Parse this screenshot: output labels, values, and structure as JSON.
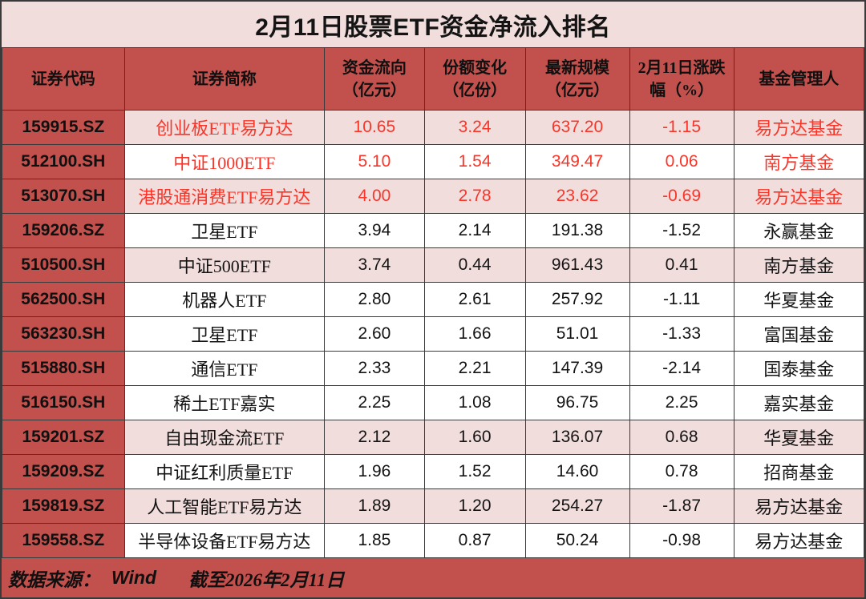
{
  "title": "2月11日股票ETF资金净流入排名",
  "colors": {
    "outer_border": "#3a3a3a",
    "title_bar_bg": "#F1DDDC",
    "header_red": "#C2514D",
    "highlight_row_pink": "#F1DDDC",
    "red_text": "#F93529",
    "black_text": "#141414"
  },
  "chart_data": {
    "type": "table",
    "title": "2月11日股票ETF资金净流入排名",
    "columns": [
      "证券代码",
      "证券简称",
      "资金流向（亿元）",
      "份额变化（亿份）",
      "最新规模（亿元）",
      "2月11日涨跌幅（%）",
      "基金管理人"
    ],
    "columns_display": [
      "证券代码",
      "证券简称",
      "资金流向\n（亿元）",
      "份额变化\n（亿份）",
      "最新规模\n（亿元）",
      "2月11日涨跌\n幅（%）",
      "基金管理人"
    ],
    "rows": [
      {
        "code": "159915.SZ",
        "name": "创业板ETF易方达",
        "flow": "10.65",
        "share_change": "3.24",
        "scale": "637.20",
        "change_pct": "-1.15",
        "manager": "易方达基金",
        "pink": true,
        "red": true
      },
      {
        "code": "512100.SH",
        "name": "中证1000ETF",
        "flow": "5.10",
        "share_change": "1.54",
        "scale": "349.47",
        "change_pct": "0.06",
        "manager": "南方基金",
        "pink": false,
        "red": true
      },
      {
        "code": "513070.SH",
        "name": "港股通消费ETF易方达",
        "flow": "4.00",
        "share_change": "2.78",
        "scale": "23.62",
        "change_pct": "-0.69",
        "manager": "易方达基金",
        "pink": true,
        "red": true
      },
      {
        "code": "159206.SZ",
        "name": "卫星ETF",
        "flow": "3.94",
        "share_change": "2.14",
        "scale": "191.38",
        "change_pct": "-1.52",
        "manager": "永赢基金",
        "pink": false,
        "red": false
      },
      {
        "code": "510500.SH",
        "name": "中证500ETF",
        "flow": "3.74",
        "share_change": "0.44",
        "scale": "961.43",
        "change_pct": "0.41",
        "manager": "南方基金",
        "pink": true,
        "red": false
      },
      {
        "code": "562500.SH",
        "name": "机器人ETF",
        "flow": "2.80",
        "share_change": "2.61",
        "scale": "257.92",
        "change_pct": "-1.11",
        "manager": "华夏基金",
        "pink": false,
        "red": false
      },
      {
        "code": "563230.SH",
        "name": "卫星ETF",
        "flow": "2.60",
        "share_change": "1.66",
        "scale": "51.01",
        "change_pct": "-1.33",
        "manager": "富国基金",
        "pink": false,
        "red": false
      },
      {
        "code": "515880.SH",
        "name": "通信ETF",
        "flow": "2.33",
        "share_change": "2.21",
        "scale": "147.39",
        "change_pct": "-2.14",
        "manager": "国泰基金",
        "pink": false,
        "red": false
      },
      {
        "code": "516150.SH",
        "name": "稀土ETF嘉实",
        "flow": "2.25",
        "share_change": "1.08",
        "scale": "96.75",
        "change_pct": "2.25",
        "manager": "嘉实基金",
        "pink": false,
        "red": false
      },
      {
        "code": "159201.SZ",
        "name": "自由现金流ETF",
        "flow": "2.12",
        "share_change": "1.60",
        "scale": "136.07",
        "change_pct": "0.68",
        "manager": "华夏基金",
        "pink": true,
        "red": false
      },
      {
        "code": "159209.SZ",
        "name": "中证红利质量ETF",
        "flow": "1.96",
        "share_change": "1.52",
        "scale": "14.60",
        "change_pct": "0.78",
        "manager": "招商基金",
        "pink": false,
        "red": false
      },
      {
        "code": "159819.SZ",
        "name": "人工智能ETF易方达",
        "flow": "1.89",
        "share_change": "1.20",
        "scale": "254.27",
        "change_pct": "-1.87",
        "manager": "易方达基金",
        "pink": true,
        "red": false
      },
      {
        "code": "159558.SZ",
        "name": "半导体设备ETF易方达",
        "flow": "1.85",
        "share_change": "0.87",
        "scale": "50.24",
        "change_pct": "-0.98",
        "manager": "易方达基金",
        "pink": false,
        "red": false
      }
    ]
  },
  "footer": {
    "source_label": "数据来源：",
    "source_value": "Wind",
    "as_of": "截至2026年2月11日"
  }
}
